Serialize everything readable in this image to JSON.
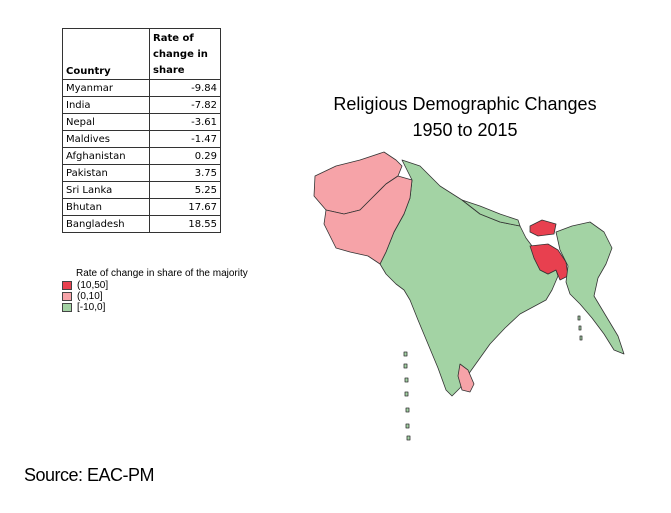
{
  "table": {
    "header_country": "Country",
    "header_rate_lines": [
      "Rate of",
      "change in",
      "share"
    ],
    "rows": [
      {
        "country": "Myanmar",
        "value": "-9.84"
      },
      {
        "country": "India",
        "value": "-7.82"
      },
      {
        "country": "Nepal",
        "value": "-3.61"
      },
      {
        "country": "Maldives",
        "value": "-1.47"
      },
      {
        "country": "Afghanistan",
        "value": "0.29"
      },
      {
        "country": "Pakistan",
        "value": "3.75"
      },
      {
        "country": "Sri Lanka",
        "value": "5.25"
      },
      {
        "country": "Bhutan",
        "value": "17.67"
      },
      {
        "country": "Bangladesh",
        "value": "18.55"
      }
    ]
  },
  "map": {
    "title_line1": "Religious Demographic Changes",
    "title_line2": "1950 to 2015",
    "colors": {
      "high": "#e8404f",
      "mid": "#f6a3a8",
      "low": "#a3d3a4",
      "border": "#333333"
    }
  },
  "legend": {
    "title": "Rate of change in share of the majority",
    "items": [
      {
        "label": "(10,50]",
        "color": "#e8404f"
      },
      {
        "label": "(0,10]",
        "color": "#f6a3a8"
      },
      {
        "label": "[-10,0]",
        "color": "#a3d3a4"
      }
    ]
  },
  "source": "Source: EAC-PM"
}
